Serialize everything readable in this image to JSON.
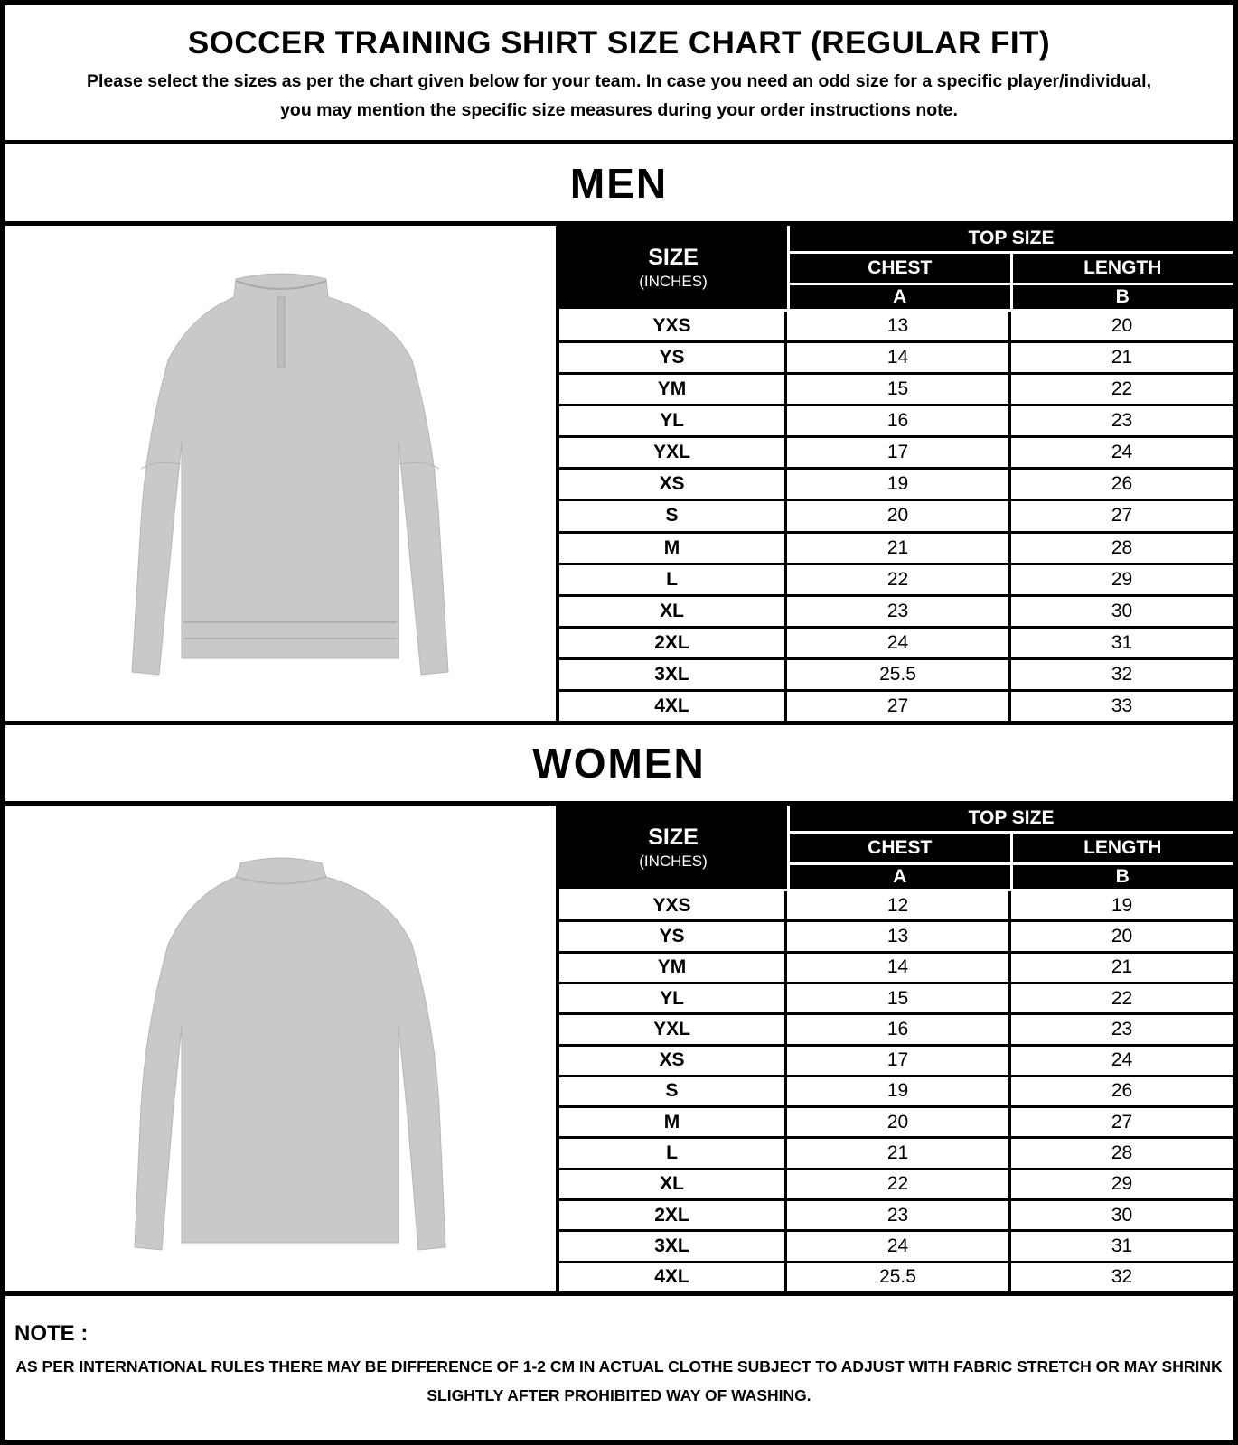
{
  "header": {
    "title": "SOCCER TRAINING SHIRT SIZE CHART (REGULAR FIT)",
    "subtitle": "Please select the sizes as per the chart given below for your team. In case you need an odd size for a specific player/individual, you may mention the specific size measures during your order instructions note."
  },
  "table_header": {
    "size": "SIZE",
    "unit": "(INCHES)",
    "top_size": "TOP SIZE",
    "chest": "CHEST",
    "length": "LENGTH",
    "a": "A",
    "b": "B"
  },
  "men": {
    "title": "MEN",
    "image": "shirt-front",
    "rows": [
      [
        "YXS",
        "13",
        "20"
      ],
      [
        "YS",
        "14",
        "21"
      ],
      [
        "YM",
        "15",
        "22"
      ],
      [
        "YL",
        "16",
        "23"
      ],
      [
        "YXL",
        "17",
        "24"
      ],
      [
        "XS",
        "19",
        "26"
      ],
      [
        "S",
        "20",
        "27"
      ],
      [
        "M",
        "21",
        "28"
      ],
      [
        "L",
        "22",
        "29"
      ],
      [
        "XL",
        "23",
        "30"
      ],
      [
        "2XL",
        "24",
        "31"
      ],
      [
        "3XL",
        "25.5",
        "32"
      ],
      [
        "4XL",
        "27",
        "33"
      ]
    ]
  },
  "women": {
    "title": "WOMEN",
    "image": "shirt-back",
    "rows": [
      [
        "YXS",
        "12",
        "19"
      ],
      [
        "YS",
        "13",
        "20"
      ],
      [
        "YM",
        "14",
        "21"
      ],
      [
        "YL",
        "15",
        "22"
      ],
      [
        "YXL",
        "16",
        "23"
      ],
      [
        "XS",
        "17",
        "24"
      ],
      [
        "S",
        "19",
        "26"
      ],
      [
        "M",
        "20",
        "27"
      ],
      [
        "L",
        "21",
        "28"
      ],
      [
        "XL",
        "22",
        "29"
      ],
      [
        "2XL",
        "23",
        "30"
      ],
      [
        "3XL",
        "24",
        "31"
      ],
      [
        "4XL",
        "25.5",
        "32"
      ]
    ]
  },
  "note": {
    "title": "NOTE :",
    "text": "AS PER INTERNATIONAL RULES THERE MAY BE DIFFERENCE OF 1-2 CM IN ACTUAL CLOTHE SUBJECT TO ADJUST WITH FABRIC STRETCH OR MAY SHRINK SLIGHTLY AFTER PROHIBITED WAY OF WASHING."
  },
  "colors": {
    "shirt": "#c9c9c9",
    "border": "#000000"
  }
}
